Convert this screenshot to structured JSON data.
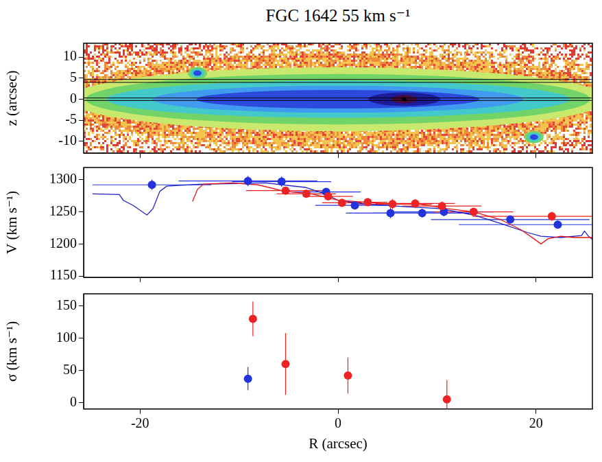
{
  "chart_data": [
    {
      "type": "image",
      "title": "FGC 1642 55 km s⁻¹",
      "y_label": "z (arcsec)",
      "xlim": [
        -25.7,
        25.7
      ],
      "xticks": [
        -20,
        0,
        20
      ],
      "ylim": [
        -12.8,
        13.3
      ],
      "yticks": [
        -10,
        -5,
        0,
        5,
        10
      ],
      "tick_labels": "y",
      "grid": false,
      "image": {
        "disk": {
          "x": 0,
          "z": 0,
          "half_length": 26,
          "half_height": 4
        },
        "core": {
          "x": 6.7,
          "z": 0
        },
        "knots": [
          {
            "x": -14.2,
            "z": 6.2
          },
          {
            "x": 19.8,
            "z": -9
          }
        ]
      },
      "slit_lines": [
        4.7,
        4.0,
        0.3,
        -0.3
      ]
    },
    {
      "type": "scatter",
      "y_label": "V (km s⁻¹)",
      "xlim": [
        -25.7,
        25.7
      ],
      "xticks": [
        -20,
        0,
        20
      ],
      "ylim": [
        1148,
        1319
      ],
      "yticks": [
        1150,
        1200,
        1250,
        1300
      ],
      "tick_labels": "y",
      "grid": false,
      "series": [
        {
          "type": "line",
          "color": "#1f1fcc",
          "x": [
            -24.8,
            -22.1,
            -21.7,
            -20.7,
            -19.3,
            -18.7,
            -18.0,
            -17.3,
            -14,
            -10,
            -7.4,
            -3.3,
            -1.3,
            0,
            2.8,
            6.9,
            10.3,
            13.7,
            16.4,
            19.1,
            20.5,
            22.5,
            24.6,
            24.9,
            25.3,
            25.7
          ],
          "values": [
            1278,
            1277,
            1268,
            1260,
            1245,
            1255,
            1282,
            1290,
            1293,
            1294,
            1295,
            1288,
            1278,
            1268,
            1262,
            1258,
            1255,
            1245,
            1232,
            1218,
            1212,
            1210,
            1213,
            1220,
            1212,
            1207
          ]
        },
        {
          "type": "line",
          "color": "#ee1111",
          "x": [
            -14.7,
            -14.2,
            -13.6,
            -10.8,
            -8.1,
            -5.4,
            -2.7,
            0,
            2.8,
            5.5,
            8.2,
            11,
            13.7,
            16.4,
            18.5,
            19.8,
            20.5,
            21.2,
            22.5,
            23.9,
            25.7
          ],
          "values": [
            1266,
            1285,
            1293,
            1295,
            1292,
            1282,
            1278,
            1268,
            1265,
            1262,
            1262,
            1255,
            1250,
            1238,
            1222,
            1208,
            1200,
            1208,
            1212,
            1210,
            1210
          ]
        },
        {
          "type": "scatter",
          "color": "#2233dd",
          "marker": "circle",
          "x": [
            -18.8,
            -9.1,
            -5.7,
            -1.2,
            1.7,
            5.3,
            8.5,
            10.7,
            17.4,
            22.2
          ],
          "values": [
            1292,
            1298,
            1297,
            1281,
            1260,
            1248,
            1248,
            1250,
            1238,
            1230
          ],
          "y_err": [
            8,
            8,
            8,
            6,
            6,
            8,
            7,
            7,
            5,
            6
          ],
          "x_err": [
            6,
            7,
            5,
            3.5,
            4,
            4.5,
            5,
            5,
            8,
            10
          ]
        },
        {
          "type": "scatter",
          "color": "#ee2222",
          "marker": "circle",
          "x": [
            -5.3,
            -3.2,
            -1.0,
            0.4,
            3.0,
            5.5,
            7.8,
            10.5,
            13.7,
            21.6
          ],
          "values": [
            1283,
            1278,
            1274,
            1264,
            1265,
            1262,
            1263,
            1259,
            1250,
            1243
          ],
          "y_err": [
            6,
            6,
            6,
            6,
            6,
            8,
            7,
            7,
            6,
            7
          ],
          "x_err": [
            4,
            3,
            2.5,
            2,
            2,
            4,
            4,
            4,
            4,
            8
          ]
        }
      ]
    },
    {
      "type": "scatter",
      "x_label": "R (arcsec)",
      "y_label": "σ (km s⁻¹)",
      "xlim": [
        -25.7,
        25.7
      ],
      "xticks": [
        -20,
        0,
        20
      ],
      "ylim": [
        -10,
        169
      ],
      "yticks": [
        0,
        50,
        100,
        150
      ],
      "grid": false,
      "series": [
        {
          "type": "scatter",
          "color": "#2233dd",
          "marker": "circle",
          "x": [
            -9.1
          ],
          "values": [
            37
          ],
          "y_err": [
            18
          ]
        },
        {
          "type": "scatter",
          "color": "#ee2222",
          "marker": "circle",
          "x": [
            -8.6,
            -5.3,
            1.0,
            11.0
          ],
          "values": [
            130,
            60,
            42,
            5
          ],
          "y_err": [
            27,
            48,
            28,
            30
          ]
        }
      ]
    }
  ]
}
